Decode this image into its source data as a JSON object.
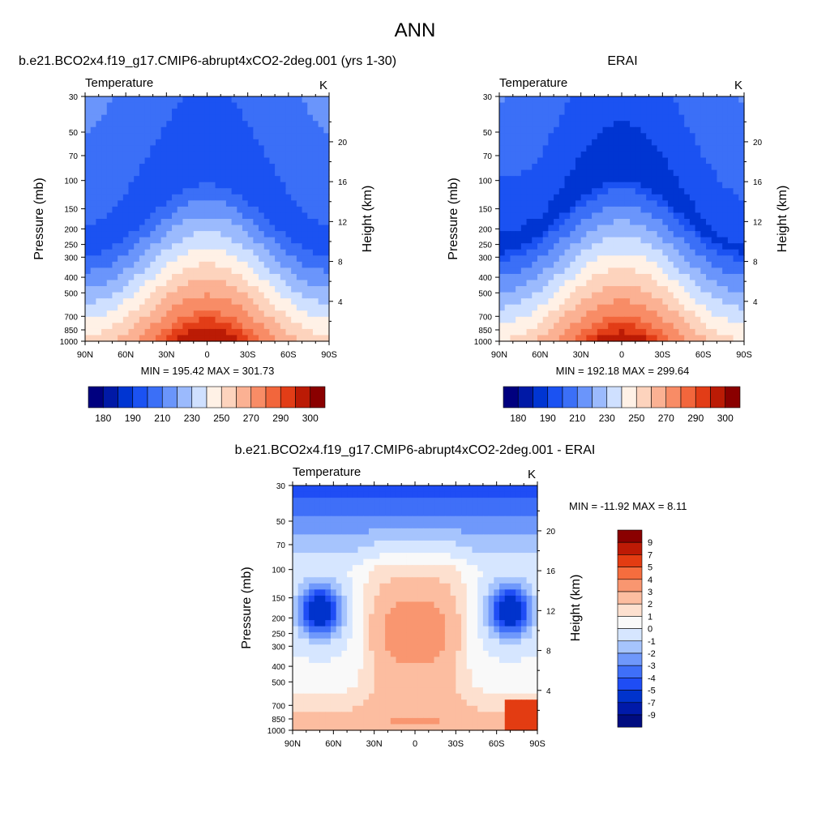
{
  "page": {
    "title": "ANN",
    "colors": {
      "abs_palette": [
        "#00007f",
        "#0019a6",
        "#0035d2",
        "#1b52f2",
        "#3b6ff7",
        "#6a95fb",
        "#9bbafd",
        "#cfe0ff",
        "#fff1e6",
        "#fdd3bd",
        "#fbb193",
        "#f88c66",
        "#f2663c",
        "#e23d17",
        "#bb1b05",
        "#8a0000"
      ],
      "diff_palette": [
        "#000c80",
        "#001aa9",
        "#0033cc",
        "#1f4df5",
        "#3f6ff8",
        "#6f98fb",
        "#a6c4fd",
        "#d6e6ff",
        "#f9f9f9",
        "#fde0cf",
        "#fcbda0",
        "#f99670",
        "#f56d3e",
        "#e33c12",
        "#bd1a05",
        "#8a0000"
      ]
    }
  },
  "chart_data": [
    {
      "type": "heatmap",
      "panel": "model",
      "title": "b.e21.BCO2x4.f19_g17.CMIP6-abrupt4xCO2-2deg.001 (yrs 1-30)",
      "left_label": "Temperature",
      "right_label": "K",
      "ylabel": "Pressure (mb)",
      "y2label": "Height (km)",
      "x_ticks": [
        "90N",
        "60N",
        "30N",
        "0",
        "30S",
        "60S",
        "90S"
      ],
      "y_ticks": [
        "30",
        "50",
        "70",
        "100",
        "150",
        "200",
        "250",
        "300",
        "400",
        "500",
        "700",
        "850",
        "1000"
      ],
      "y2_ticks": [
        "20",
        "16",
        "12",
        "8",
        "4"
      ],
      "stats": "MIN = 195.42  MAX = 301.73",
      "min": 195.42,
      "max": 301.73,
      "colorbar_labels": [
        "180",
        "190",
        "210",
        "230",
        "250",
        "270",
        "290",
        "300"
      ]
    },
    {
      "type": "heatmap",
      "panel": "obs",
      "title": "ERAI",
      "left_label": "Temperature",
      "right_label": "K",
      "ylabel": "Pressure (mb)",
      "y2label": "Height (km)",
      "x_ticks": [
        "90N",
        "60N",
        "30N",
        "0",
        "30S",
        "60S",
        "90S"
      ],
      "y_ticks": [
        "30",
        "50",
        "70",
        "100",
        "150",
        "200",
        "250",
        "300",
        "400",
        "500",
        "700",
        "850",
        "1000"
      ],
      "y2_ticks": [
        "20",
        "16",
        "12",
        "8",
        "4"
      ],
      "stats": "MIN = 192.18  MAX = 299.64",
      "min": 192.18,
      "max": 299.64,
      "colorbar_labels": [
        "180",
        "190",
        "210",
        "230",
        "250",
        "270",
        "290",
        "300"
      ]
    },
    {
      "type": "heatmap",
      "panel": "diff",
      "title": "b.e21.BCO2x4.f19_g17.CMIP6-abrupt4xCO2-2deg.001 - ERAI",
      "left_label": "Temperature",
      "right_label": "K",
      "ylabel": "Pressure (mb)",
      "y2label": "Height (km)",
      "x_ticks": [
        "90N",
        "60N",
        "30N",
        "0",
        "30S",
        "60S",
        "90S"
      ],
      "y_ticks": [
        "30",
        "50",
        "70",
        "100",
        "150",
        "200",
        "250",
        "300",
        "400",
        "500",
        "700",
        "850",
        "1000"
      ],
      "y2_ticks": [
        "20",
        "16",
        "12",
        "8",
        "4"
      ],
      "stats": "MIN = -11.92  MAX =   8.11",
      "min": -11.92,
      "max": 8.11,
      "colorbar_labels": [
        "9",
        "7",
        "5",
        "4",
        "3",
        "2",
        "1",
        "0",
        "-1",
        "-2",
        "-3",
        "-4",
        "-5",
        "-7",
        "-9"
      ]
    }
  ]
}
